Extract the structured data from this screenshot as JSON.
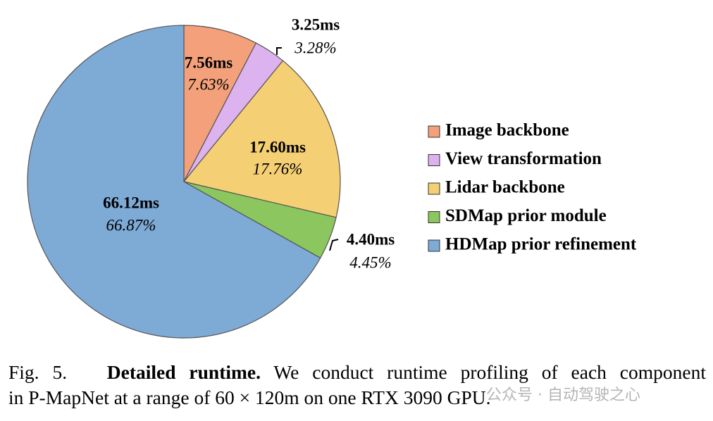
{
  "chart_data": {
    "type": "pie",
    "categories": [
      "Image backbone",
      "View transformation",
      "Lidar backbone",
      "SDMap prior module",
      "HDMap prior refinement"
    ],
    "values": [
      7.63,
      3.28,
      17.76,
      4.45,
      66.87
    ],
    "value_labels": [
      "7.63%",
      "3.28%",
      "17.76%",
      "4.45%",
      "66.87%"
    ],
    "runtime_labels": [
      "7.56ms",
      "3.25ms",
      "17.60ms",
      "4.40ms",
      "66.12ms"
    ],
    "colors": [
      "#f4a17b",
      "#dcb2ef",
      "#f5cf73",
      "#8cc65e",
      "#7eaad6"
    ],
    "legend": "right"
  },
  "caption": {
    "label": "Fig. 5.",
    "heading": "Detailed runtime.",
    "lines": [
      "We conduct runtime profiling of each component",
      "in P-MapNet at a range of 60 × 120m on one RTX 3090 GPU."
    ]
  },
  "watermark": "公众号 · 自动驾驶之心"
}
